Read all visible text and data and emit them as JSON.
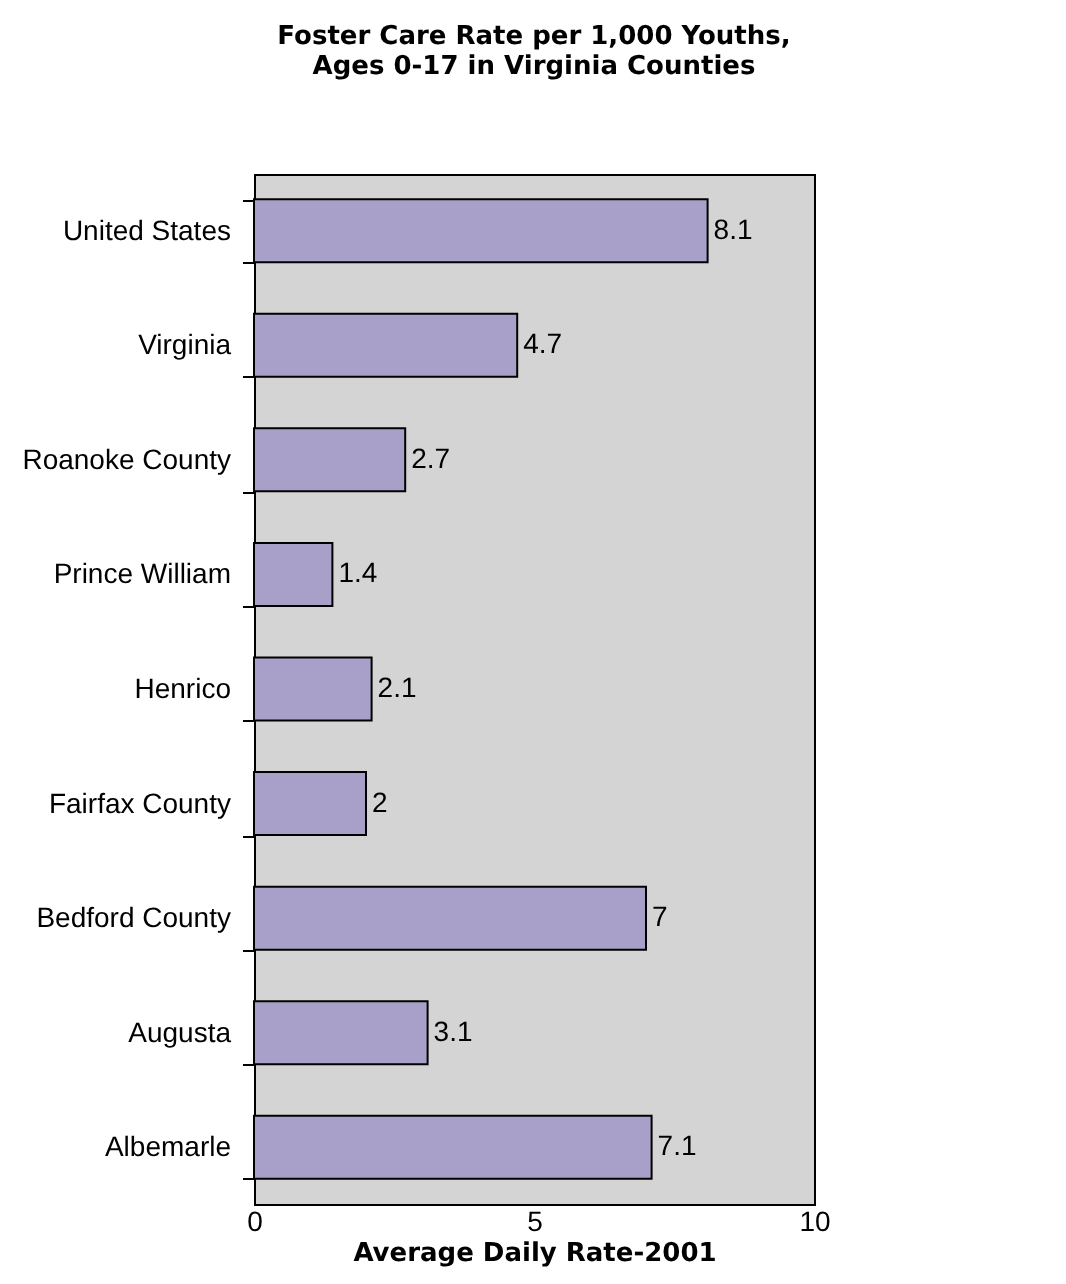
{
  "chart_data": {
    "type": "bar",
    "orientation": "horizontal",
    "title": "Foster Care Rate per 1,000 Youths,\nAges 0-17 in Virginia Counties",
    "xlabel": "Average Daily Rate-2001",
    "categories": [
      "United States",
      "Virginia",
      "Roanoke County",
      "Prince William",
      "Henrico",
      "Fairfax County",
      "Bedford County",
      "Augusta",
      "Albemarle"
    ],
    "values": [
      8.1,
      4.7,
      2.7,
      1.4,
      2.1,
      2,
      7,
      3.1,
      7.1
    ],
    "color": "#a9a0c9",
    "xlim": [
      0,
      10
    ],
    "xticks": [
      0,
      5,
      10
    ],
    "data_labels": true,
    "grid": false
  }
}
